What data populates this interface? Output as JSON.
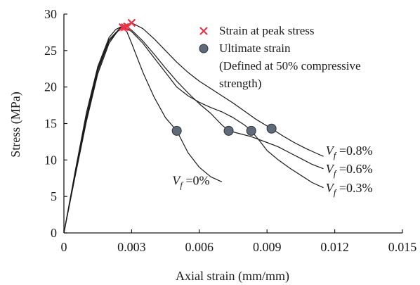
{
  "chart_data": {
    "type": "line",
    "xlabel": "Axial strain (mm/mm)",
    "ylabel": "Stress (MPa)",
    "xlim": [
      0,
      0.015
    ],
    "ylim": [
      0,
      30
    ],
    "xticks": [
      0,
      0.003,
      0.006,
      0.009,
      0.012,
      0.015
    ],
    "xtick_labels": [
      "0",
      "0.003",
      "0.006",
      "0.009",
      "0.012",
      "0.015"
    ],
    "yticks": [
      0,
      5,
      10,
      15,
      20,
      25,
      30
    ],
    "ytick_labels": [
      "0",
      "5",
      "10",
      "15",
      "20",
      "25",
      "30"
    ],
    "grid": false,
    "legend": {
      "position": "top-right",
      "entries": [
        {
          "marker": "x",
          "color": "#e8344a",
          "label": "Strain at peak stress"
        },
        {
          "marker": "circle",
          "color": "#5f6b78",
          "label": "Ultimate strain"
        },
        {
          "marker": "none",
          "label": "(Defined at 50% compressive"
        },
        {
          "marker": "none",
          "label": "strength)"
        }
      ]
    },
    "series": [
      {
        "label_prefix": "V",
        "label_sub": "f",
        "label_suffix": " =0%",
        "label_at": [
          0.0048,
          6.6
        ],
        "x": [
          0,
          0.0005,
          0.001,
          0.0015,
          0.002,
          0.0023,
          0.0025,
          0.0026,
          0.0028,
          0.003,
          0.0035,
          0.004,
          0.0045,
          0.005,
          0.0055,
          0.006,
          0.0065,
          0.007
        ],
        "y": [
          0,
          8.5,
          16.5,
          22.8,
          26.8,
          27.9,
          28.2,
          28.2,
          27.5,
          26.0,
          22.0,
          18.6,
          15.8,
          14.0,
          11.0,
          9.0,
          7.7,
          7.0
        ],
        "peak": [
          0.0026,
          28.2
        ],
        "ultimate": [
          0.005,
          14.0
        ]
      },
      {
        "label_prefix": "V",
        "label_sub": "f",
        "label_suffix": " =0.3%",
        "label_at": [
          0.0116,
          5.6
        ],
        "x": [
          0,
          0.0005,
          0.001,
          0.0015,
          0.002,
          0.0025,
          0.0027,
          0.003,
          0.0035,
          0.004,
          0.0045,
          0.005,
          0.0055,
          0.006,
          0.0065,
          0.007,
          0.0075,
          0.008,
          0.0083,
          0.0087,
          0.009,
          0.0095,
          0.01,
          0.0105,
          0.011,
          0.0115
        ],
        "y": [
          0,
          8.2,
          16.0,
          22.5,
          26.5,
          28.1,
          28.2,
          27.6,
          26.0,
          24.0,
          22.0,
          20.0,
          18.8,
          17.9,
          17.2,
          16.6,
          15.8,
          14.8,
          14.0,
          12.5,
          11.3,
          10.0,
          8.9,
          7.9,
          6.9,
          6.2
        ],
        "peak": [
          0.0027,
          28.2
        ],
        "ultimate": [
          0.0083,
          14.0
        ]
      },
      {
        "label_prefix": "V",
        "label_sub": "f",
        "label_suffix": " =0.6%",
        "label_at": [
          0.0116,
          8.2
        ],
        "x": [
          0,
          0.0005,
          0.001,
          0.0015,
          0.002,
          0.0025,
          0.0028,
          0.003,
          0.0035,
          0.004,
          0.0045,
          0.005,
          0.0055,
          0.006,
          0.0065,
          0.007,
          0.0073,
          0.0078,
          0.0083,
          0.009,
          0.0095,
          0.01,
          0.0105,
          0.011,
          0.0115
        ],
        "y": [
          0,
          8.0,
          15.6,
          22.2,
          26.3,
          28.0,
          28.3,
          27.8,
          26.3,
          24.5,
          22.6,
          20.8,
          19.2,
          17.7,
          16.4,
          14.8,
          14.0,
          13.6,
          13.2,
          12.4,
          11.8,
          11.0,
          10.2,
          9.4,
          8.8
        ],
        "peak": [
          0.0028,
          28.3
        ],
        "ultimate": [
          0.0073,
          14.0
        ]
      },
      {
        "label_prefix": "V",
        "label_sub": "f",
        "label_suffix": " =0.8%",
        "label_at": [
          0.0116,
          10.7
        ],
        "x": [
          0,
          0.0005,
          0.001,
          0.0015,
          0.002,
          0.0025,
          0.003,
          0.0035,
          0.004,
          0.0045,
          0.005,
          0.0055,
          0.006,
          0.0065,
          0.007,
          0.0075,
          0.008,
          0.0085,
          0.0092,
          0.0097,
          0.0102,
          0.0107,
          0.0112,
          0.0115
        ],
        "y": [
          0,
          7.8,
          15.3,
          21.8,
          26.0,
          28.2,
          28.8,
          28.0,
          26.6,
          25.0,
          23.4,
          22.0,
          20.8,
          19.8,
          18.8,
          17.8,
          16.7,
          15.6,
          14.3,
          13.3,
          12.4,
          11.6,
          10.9,
          10.5
        ],
        "peak": [
          0.003,
          28.8
        ],
        "ultimate": [
          0.0092,
          14.3
        ]
      }
    ]
  }
}
